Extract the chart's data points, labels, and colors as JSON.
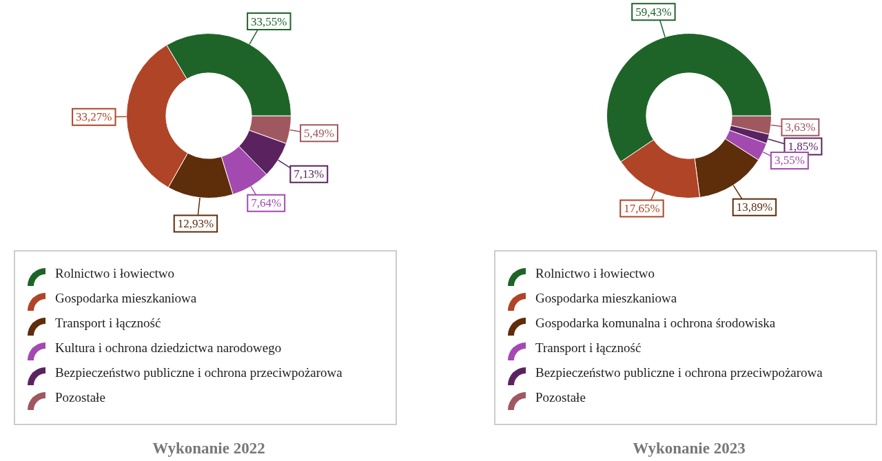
{
  "chart_data": [
    {
      "type": "donut",
      "title": "Wykonanie 2022",
      "categories": [
        "Rolnictwo i łowiectwo",
        "Gospodarka mieszkaniowa",
        "Transport i łączność",
        "Kultura i ochrona dziedzictwa narodowego",
        "Bezpieczeństwo publiczne i ochrona przeciwpożarowa",
        "Pozostałe"
      ],
      "values": [
        33.55,
        33.27,
        12.93,
        7.64,
        7.13,
        5.49
      ],
      "value_labels": [
        "33,55%",
        "33,27%",
        "12,93%",
        "7,64%",
        "7,13%",
        "5,49%"
      ],
      "colors": [
        "#1e6428",
        "#b04426",
        "#5e2d0a",
        "#a34ab0",
        "#5a2360",
        "#a05860"
      ],
      "legend": "bottom"
    },
    {
      "type": "donut",
      "title": "Wykonanie 2023",
      "categories": [
        "Rolnictwo i łowiectwo",
        "Gospodarka mieszkaniowa",
        "Gospodarka komunalna i ochrona środowiska",
        "Transport i łączność",
        "Bezpieczeństwo publiczne i ochrona przeciwpożarowa",
        "Pozostałe"
      ],
      "values": [
        59.43,
        17.65,
        13.89,
        3.55,
        1.85,
        3.63
      ],
      "value_labels": [
        "59,43%",
        "17,65%",
        "13,89%",
        "3,55%",
        "1,85%",
        "3,63%"
      ],
      "colors": [
        "#1e6428",
        "#b04426",
        "#5e2d0a",
        "#a34ab0",
        "#5a2360",
        "#a05860"
      ],
      "legend": "bottom"
    }
  ]
}
